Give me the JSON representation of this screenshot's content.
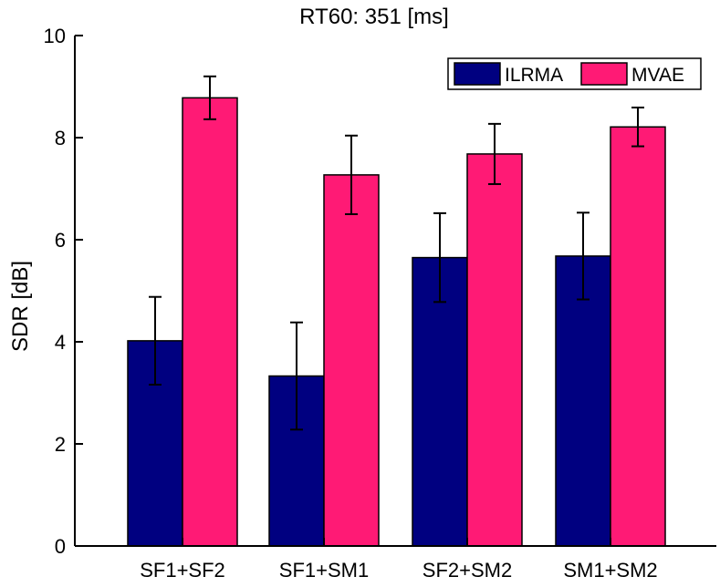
{
  "chart_data": {
    "type": "bar",
    "title": "RT60: 351 [ms]",
    "xlabel": "",
    "ylabel": "SDR [dB]",
    "ylim": [
      0,
      10
    ],
    "yticks": [
      0,
      2,
      4,
      6,
      8,
      10
    ],
    "categories": [
      "SF1+SF2",
      "SF1+SM1",
      "SF2+SM2",
      "SM1+SM2"
    ],
    "series": [
      {
        "name": "ILRMA",
        "color": "#000080",
        "values": [
          4.02,
          3.33,
          5.65,
          5.68
        ],
        "errors": [
          0.86,
          1.05,
          0.87,
          0.85
        ]
      },
      {
        "name": "MVAE",
        "color": "#ff1a75",
        "values": [
          8.78,
          7.27,
          7.68,
          8.21
        ],
        "errors": [
          0.42,
          0.77,
          0.59,
          0.38
        ]
      }
    ],
    "legend_position": "top-right",
    "grid": false
  }
}
